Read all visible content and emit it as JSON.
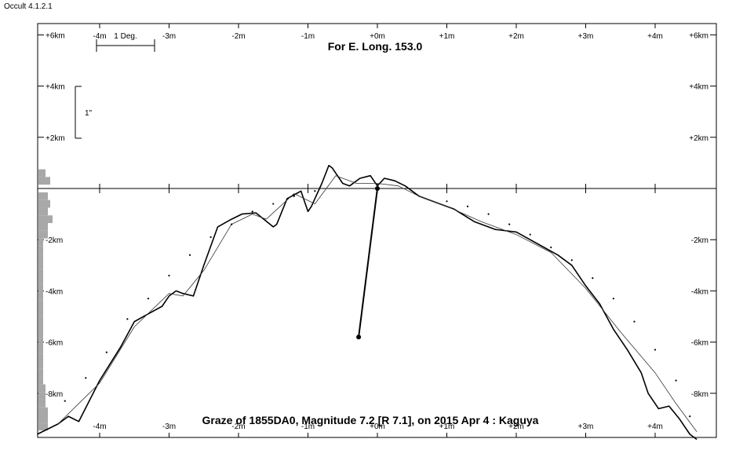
{
  "app": {
    "title": "Occult 4.1.2.1"
  },
  "chart_data": {
    "type": "line",
    "title": "For E. Long. 153.0",
    "subtitle": "Graze of  1855DA0,  Magnitude 7.2 [R 7.1],  on 2015 Apr  4  : Kaguya",
    "xlabel": "",
    "ylabel": "",
    "xlim": [
      -4.9,
      4.8
    ],
    "ylim": [
      -9.6,
      6.5
    ],
    "x_tick_values": [
      -4,
      -3,
      -2,
      -1,
      0,
      1,
      2,
      3,
      4
    ],
    "x_tick_labels_top": [
      "-4m",
      "-3m",
      "-2m",
      "-1m",
      "+0m",
      "+1m",
      "+2m",
      "+3m",
      "+4m"
    ],
    "x_tick_labels_bottom": [
      "-4m",
      "-3m",
      "-2m",
      "-1m",
      "+0m",
      "+1m",
      "+2m",
      "+3m",
      "+4m"
    ],
    "y_tick_values": [
      6,
      4,
      2,
      -2,
      -4,
      -6,
      -8
    ],
    "y_tick_labels": [
      "+6km",
      "+4km",
      "+2km",
      "-2km",
      "-4km",
      "-6km",
      "-8km"
    ],
    "scale_labels": {
      "deg": "1 Deg.",
      "arcsec": "1\""
    },
    "series": [
      {
        "style": "profile-detailed",
        "x": [
          -4.9,
          -4.6,
          -4.45,
          -4.3,
          -4.0,
          -3.7,
          -3.5,
          -3.3,
          -3.1,
          -3.0,
          -2.9,
          -2.8,
          -2.65,
          -2.5,
          -2.3,
          -2.1,
          -1.95,
          -1.75,
          -1.5,
          -1.45,
          -1.3,
          -1.1,
          -1.0,
          -0.95,
          -0.8,
          -0.7,
          -0.65,
          -0.6,
          -0.5,
          -0.4,
          -0.25,
          -0.1,
          0.0,
          0.1,
          0.25,
          0.4,
          0.6,
          0.9,
          1.1,
          1.4,
          1.7,
          2.0,
          2.4,
          2.6,
          2.8,
          3.0,
          3.2,
          3.4,
          3.6,
          3.8,
          3.9,
          4.05,
          4.2,
          4.35,
          4.5,
          4.6
        ],
        "y": [
          -9.6,
          -9.2,
          -8.9,
          -9.1,
          -7.5,
          -6.2,
          -5.2,
          -4.9,
          -4.6,
          -4.2,
          -4.0,
          -4.1,
          -4.2,
          -3.0,
          -1.5,
          -1.2,
          -1.0,
          -0.95,
          -1.5,
          -1.4,
          -0.4,
          -0.1,
          -0.9,
          -0.7,
          0.2,
          0.9,
          0.8,
          0.6,
          0.2,
          0.1,
          0.4,
          0.5,
          0.1,
          0.4,
          0.3,
          0.1,
          -0.3,
          -0.6,
          -0.8,
          -1.3,
          -1.6,
          -1.7,
          -2.3,
          -2.6,
          -3.0,
          -3.8,
          -4.5,
          -5.5,
          -6.3,
          -7.2,
          -8.0,
          -8.6,
          -8.5,
          -9.0,
          -9.6,
          -9.8
        ]
      },
      {
        "style": "profile-smooth",
        "x": [
          -4.6,
          -4.3,
          -4.0,
          -3.5,
          -3.0,
          -2.8,
          -2.5,
          -2.1,
          -1.8,
          -1.6,
          -1.2,
          -0.9,
          -0.6,
          -0.3,
          0.0,
          0.3,
          0.6,
          1.0,
          1.5,
          2.0,
          2.5,
          3.0,
          3.5,
          4.0,
          4.3,
          4.6
        ],
        "y": [
          -9.2,
          -8.4,
          -7.6,
          -5.4,
          -4.1,
          -4.2,
          -3.2,
          -1.4,
          -1.0,
          -1.2,
          -0.2,
          -0.6,
          0.5,
          0.2,
          0.2,
          0.1,
          -0.3,
          -0.7,
          -1.3,
          -1.8,
          -2.5,
          -3.9,
          -5.6,
          -7.2,
          -8.4,
          -9.5
        ]
      },
      {
        "style": "limb-dots",
        "x": [
          -4.5,
          -4.2,
          -3.9,
          -3.6,
          -3.3,
          -3.0,
          -2.7,
          -2.4,
          -2.1,
          -1.8,
          -1.5,
          -1.2,
          -0.9,
          1.0,
          1.3,
          1.6,
          1.9,
          2.2,
          2.5,
          2.8,
          3.1,
          3.4,
          3.7,
          4.0,
          4.3,
          4.5
        ],
        "y": [
          -8.3,
          -7.4,
          -6.4,
          -5.1,
          -4.3,
          -3.4,
          -2.6,
          -1.9,
          -1.4,
          -0.9,
          -0.6,
          -0.3,
          -0.1,
          -0.5,
          -0.7,
          -1.0,
          -1.4,
          -1.8,
          -2.3,
          -2.8,
          -3.5,
          -4.3,
          -5.2,
          -6.3,
          -7.5,
          -8.9
        ]
      }
    ],
    "observer": {
      "x": -0.27,
      "y": -5.8,
      "limb_x": 0.0,
      "limb_y": 0.0
    },
    "left_histogram": {
      "bins_y": [
        0.6,
        0.3,
        -0.3,
        -0.6,
        -0.9,
        -1.2,
        -1.5,
        -1.8,
        -2.1,
        -2.4,
        -2.7,
        -3.0,
        -3.3,
        -3.6,
        -3.9,
        -4.2,
        -4.5,
        -4.8,
        -5.1,
        -5.4,
        -5.7,
        -6.0,
        -6.3,
        -6.6,
        -6.9,
        -7.2,
        -7.5,
        -7.8,
        -8.1,
        -8.4,
        -8.7,
        -9.0,
        -9.3
      ],
      "values": [
        3,
        5,
        4,
        5,
        4,
        6,
        4,
        4,
        2,
        2,
        2,
        2,
        2,
        2,
        2,
        2,
        2,
        2,
        2,
        2,
        2,
        2,
        2,
        2,
        2,
        2,
        2,
        3,
        3,
        3,
        4,
        4,
        4
      ]
    },
    "grid": false,
    "legend": "none"
  }
}
